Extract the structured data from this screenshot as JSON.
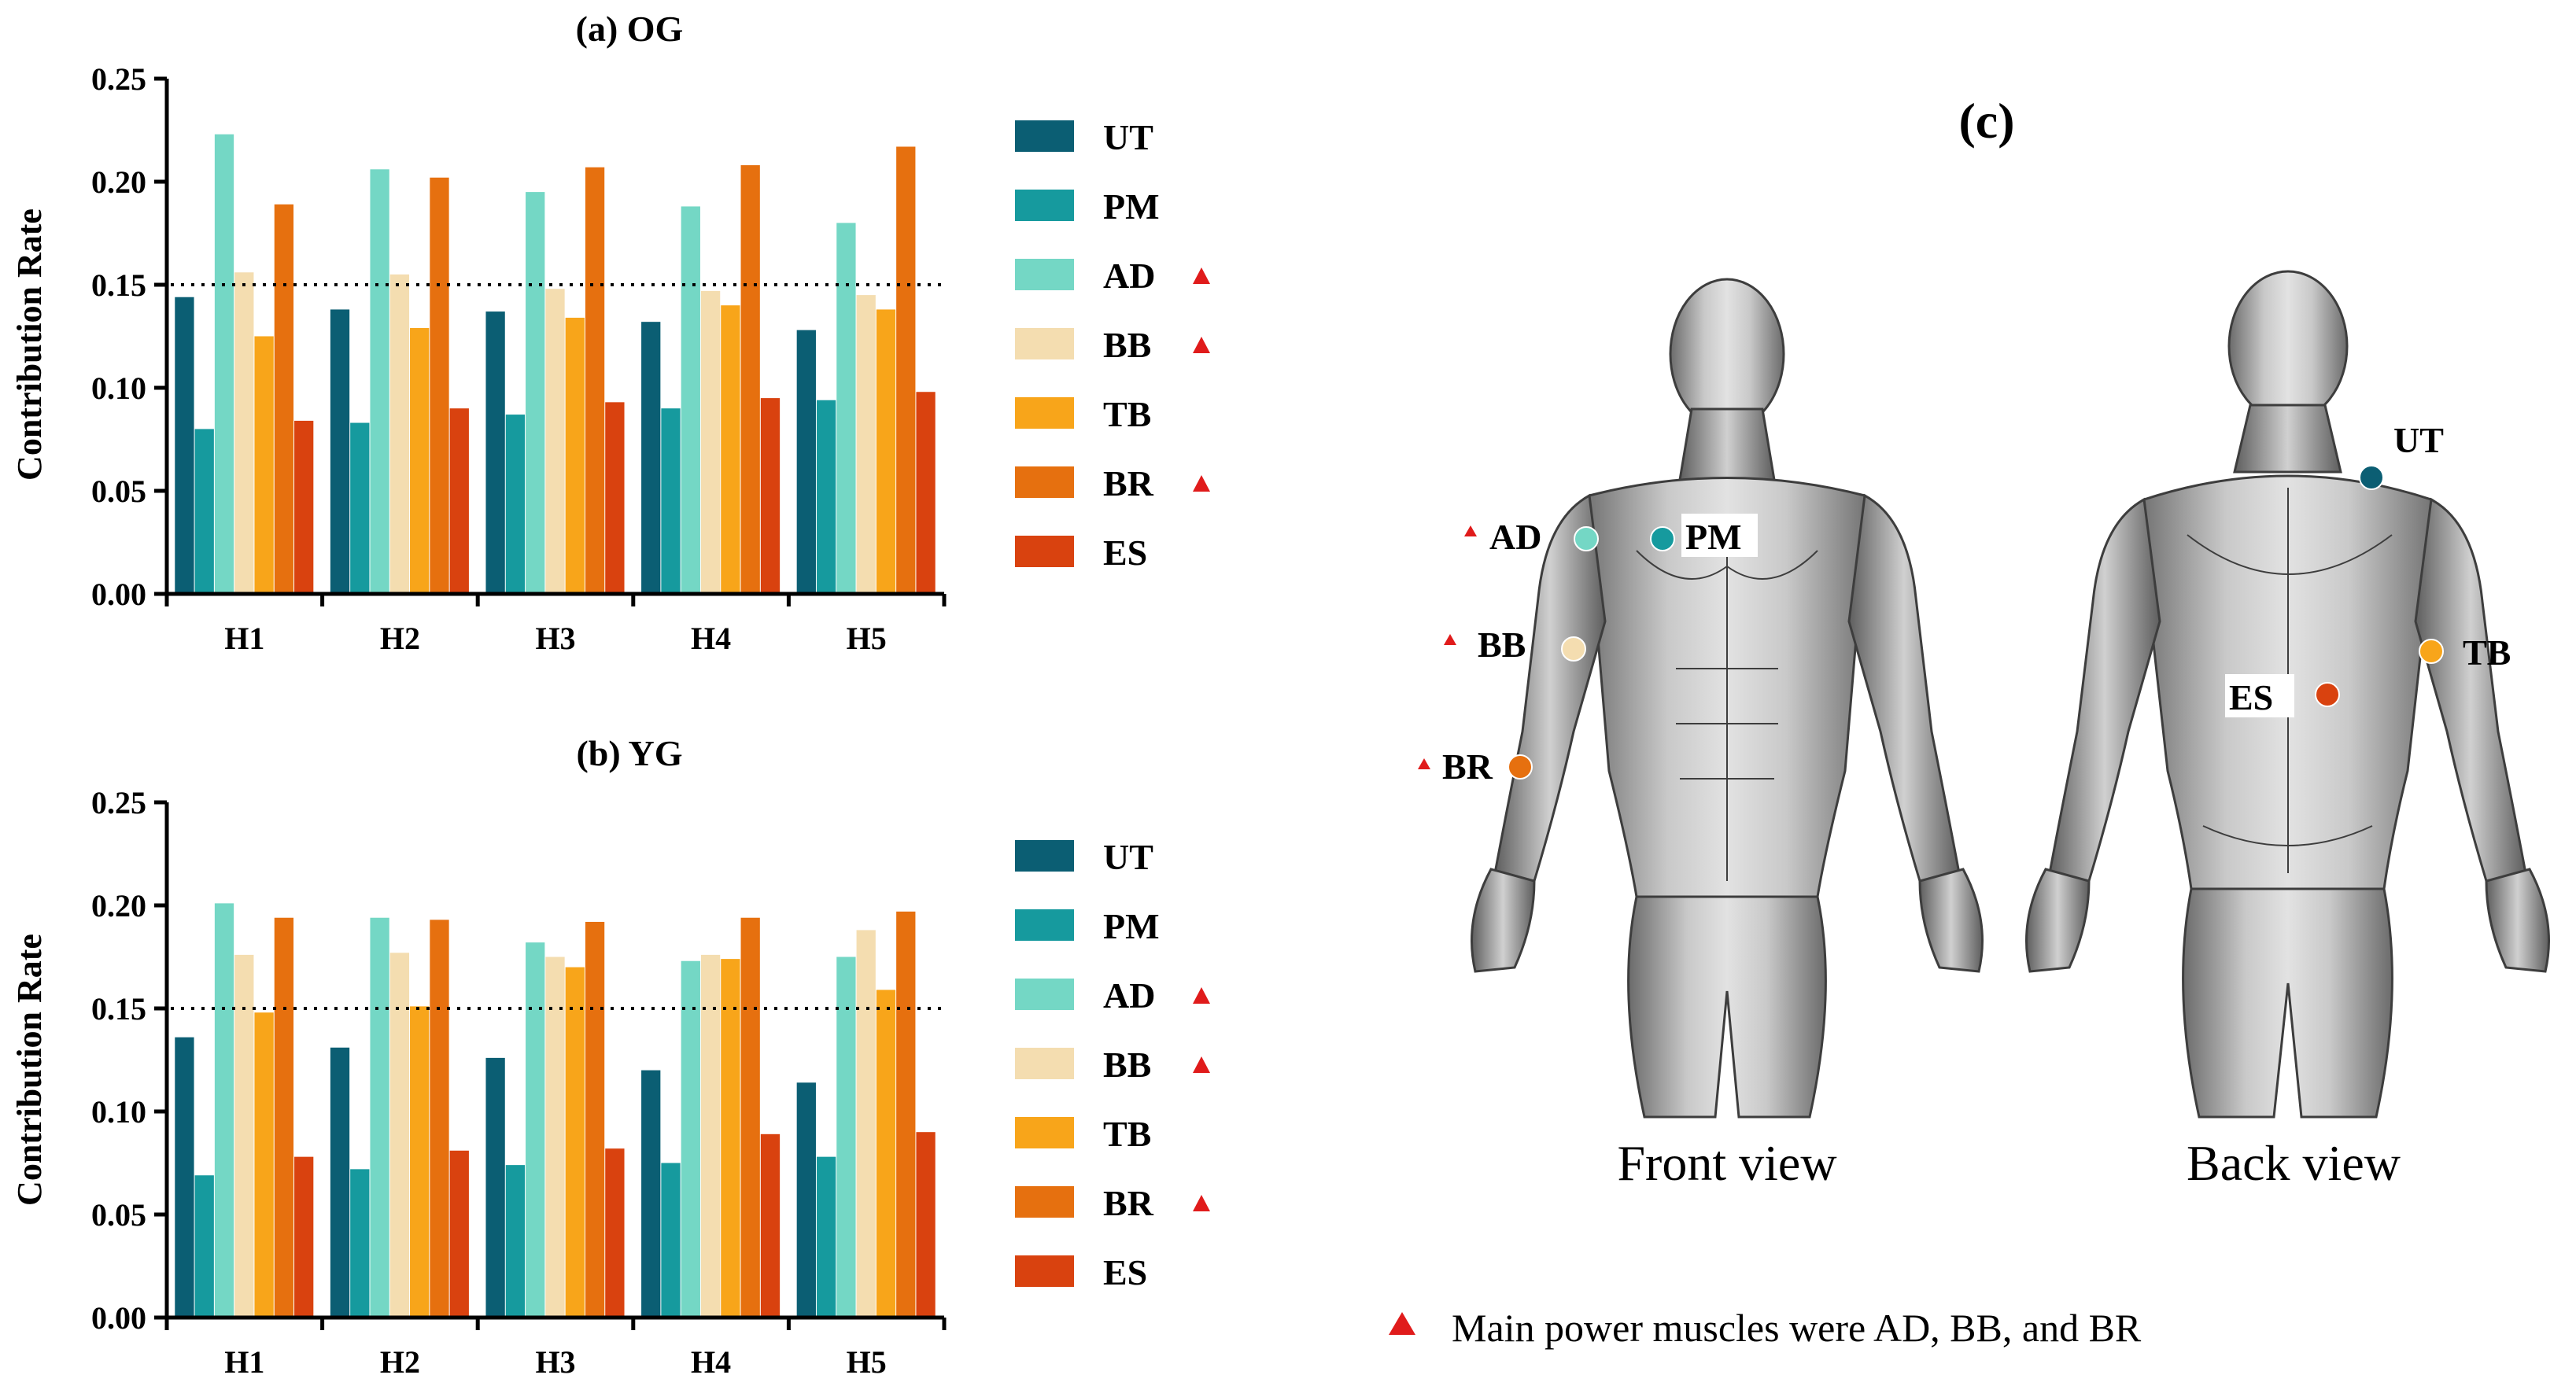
{
  "chart_data": [
    {
      "type": "bar",
      "title": "(a) OG",
      "ylabel": "Contribution Rate",
      "xlabel": "",
      "ylim": [
        0,
        0.25
      ],
      "yticks": [
        "0.00",
        "0.05",
        "0.10",
        "0.15",
        "0.20",
        "0.25"
      ],
      "threshold": 0.15,
      "categories": [
        "H1",
        "H2",
        "H3",
        "H4",
        "H5"
      ],
      "legend_position": "right",
      "series": [
        {
          "name": "UT",
          "color": "#0b5e73",
          "marked": false,
          "values": [
            0.144,
            0.138,
            0.137,
            0.132,
            0.128
          ]
        },
        {
          "name": "PM",
          "color": "#169a9e",
          "marked": false,
          "values": [
            0.08,
            0.083,
            0.087,
            0.09,
            0.094
          ]
        },
        {
          "name": "AD",
          "color": "#74d7c5",
          "marked": true,
          "values": [
            0.223,
            0.206,
            0.195,
            0.188,
            0.18
          ]
        },
        {
          "name": "BB",
          "color": "#f4ddb0",
          "marked": true,
          "values": [
            0.156,
            0.155,
            0.148,
            0.147,
            0.145
          ]
        },
        {
          "name": "TB",
          "color": "#f8a51a",
          "marked": false,
          "values": [
            0.125,
            0.129,
            0.134,
            0.14,
            0.138
          ]
        },
        {
          "name": "BR",
          "color": "#e6700f",
          "marked": true,
          "values": [
            0.189,
            0.202,
            0.207,
            0.208,
            0.217
          ]
        },
        {
          "name": "ES",
          "color": "#d9420f",
          "marked": false,
          "values": [
            0.084,
            0.09,
            0.093,
            0.095,
            0.098
          ]
        }
      ]
    },
    {
      "type": "bar",
      "title": "(b) YG",
      "ylabel": "Contribution Rate",
      "xlabel": "",
      "ylim": [
        0,
        0.25
      ],
      "yticks": [
        "0.00",
        "0.05",
        "0.10",
        "0.15",
        "0.20",
        "0.25"
      ],
      "threshold": 0.15,
      "categories": [
        "H1",
        "H2",
        "H3",
        "H4",
        "H5"
      ],
      "legend_position": "right",
      "series": [
        {
          "name": "UT",
          "color": "#0b5e73",
          "marked": false,
          "values": [
            0.136,
            0.131,
            0.126,
            0.12,
            0.114
          ]
        },
        {
          "name": "PM",
          "color": "#169a9e",
          "marked": false,
          "values": [
            0.069,
            0.072,
            0.074,
            0.075,
            0.078
          ]
        },
        {
          "name": "AD",
          "color": "#74d7c5",
          "marked": true,
          "values": [
            0.201,
            0.194,
            0.182,
            0.173,
            0.175
          ]
        },
        {
          "name": "BB",
          "color": "#f4ddb0",
          "marked": true,
          "values": [
            0.176,
            0.177,
            0.175,
            0.176,
            0.188
          ]
        },
        {
          "name": "TB",
          "color": "#f8a51a",
          "marked": false,
          "values": [
            0.148,
            0.151,
            0.17,
            0.174,
            0.159
          ]
        },
        {
          "name": "BR",
          "color": "#e6700f",
          "marked": true,
          "values": [
            0.194,
            0.193,
            0.192,
            0.194,
            0.197
          ]
        },
        {
          "name": "ES",
          "color": "#d9420f",
          "marked": false,
          "values": [
            0.078,
            0.081,
            0.082,
            0.089,
            0.09
          ]
        }
      ]
    }
  ],
  "panel_c": {
    "title": "(c)",
    "front_label": "Front view",
    "back_label": "Back view",
    "front_markers": [
      {
        "label": "AD",
        "color": "#74d7c5",
        "marked": true
      },
      {
        "label": "PM",
        "color": "#169a9e",
        "marked": false
      },
      {
        "label": "BB",
        "color": "#f4ddb0",
        "marked": true
      },
      {
        "label": "BR",
        "color": "#e6700f",
        "marked": true
      }
    ],
    "back_markers": [
      {
        "label": "UT",
        "color": "#0b5e73",
        "marked": false
      },
      {
        "label": "TB",
        "color": "#f8a51a",
        "marked": false
      },
      {
        "label": "ES",
        "color": "#d9420f",
        "marked": false
      }
    ],
    "note": "Main power muscles were AD, BB, and BR",
    "marker_color": "#e01b1b"
  }
}
